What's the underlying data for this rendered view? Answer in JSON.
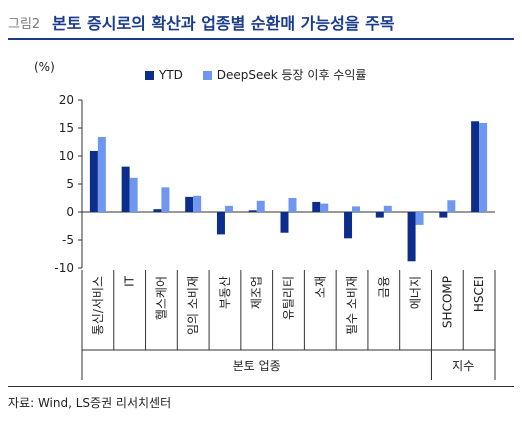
{
  "header": {
    "figure_label": "그림2",
    "title": "본토 증시로의 확산과 업종별 순환매 가능성을 주목"
  },
  "chart_data": {
    "type": "bar",
    "unit": "(%)",
    "categories": [
      "통신/서비스",
      "IT",
      "헬스케어",
      "임의 소비재",
      "부동산",
      "제조업",
      "유틸리티",
      "소재",
      "필수 소비재",
      "금융",
      "에너지",
      "SHCOMP",
      "HSCEI"
    ],
    "series": [
      {
        "name": "YTD",
        "color": "#0d2d8c",
        "values": [
          10.9,
          8.1,
          0.5,
          2.7,
          -4.0,
          0.3,
          -3.7,
          1.8,
          -4.7,
          -1.0,
          -8.8,
          -1.0,
          16.2
        ]
      },
      {
        "name": "DeepSeek 등장 이후 수익률",
        "color": "#6f97f0",
        "values": [
          13.4,
          6.1,
          4.4,
          2.9,
          1.1,
          2.0,
          2.5,
          1.5,
          1.0,
          1.1,
          -2.3,
          2.1,
          15.9
        ]
      }
    ],
    "ylim": [
      -10,
      20
    ],
    "yticks": [
      -10,
      -5,
      0,
      5,
      10,
      15,
      20
    ],
    "groups": [
      {
        "label": "본토 업종",
        "start": 0,
        "end": 10
      },
      {
        "label": "지수",
        "start": 11,
        "end": 12
      }
    ],
    "legend_position": "top",
    "grid": false
  },
  "footer": {
    "source": "자료: Wind, LS증권 리서치센터"
  }
}
